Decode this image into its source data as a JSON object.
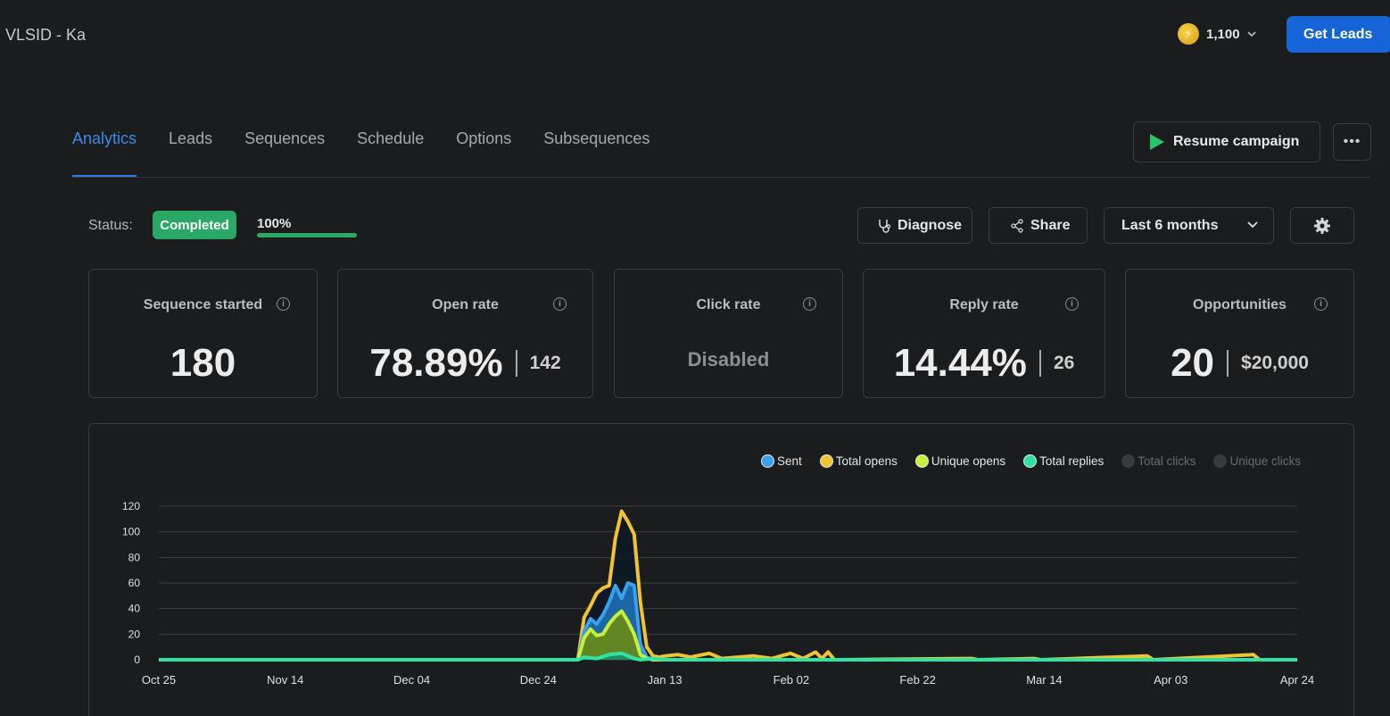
{
  "header": {
    "title": "VLSID - Ka",
    "credits": "1,100",
    "get_leads_label": "Get Leads"
  },
  "tabs": [
    {
      "label": "Analytics",
      "active": true
    },
    {
      "label": "Leads"
    },
    {
      "label": "Sequences"
    },
    {
      "label": "Schedule"
    },
    {
      "label": "Options"
    },
    {
      "label": "Subsequences"
    }
  ],
  "actions": {
    "resume_label": "Resume campaign",
    "more_label": "•••"
  },
  "status": {
    "label": "Status:",
    "value": "Completed",
    "progress_text": "100%",
    "progress": 1.0,
    "color": "#2aa866"
  },
  "controls": {
    "diagnose_label": "Diagnose",
    "share_label": "Share",
    "range_label": "Last 6 months"
  },
  "cards": {
    "sequence_started": {
      "title": "Sequence started",
      "value": "180"
    },
    "open_rate": {
      "title": "Open rate",
      "value": "78.89%",
      "count": "142"
    },
    "click_rate": {
      "title": "Click rate",
      "value": "Disabled"
    },
    "reply_rate": {
      "title": "Reply rate",
      "value": "14.44%",
      "count": "26"
    },
    "opportunities": {
      "title": "Opportunities",
      "value": "20",
      "amount": "$20,000"
    }
  },
  "chart_data": {
    "type": "area",
    "title": "",
    "xlabel": "",
    "ylabel": "",
    "x_ticks": [
      "Oct 25",
      "Nov 14",
      "Dec 04",
      "Dec 24",
      "Jan 13",
      "Feb 02",
      "Feb 22",
      "Mar 14",
      "Apr 03",
      "Apr 24"
    ],
    "y_ticks": [
      0,
      20,
      40,
      60,
      80,
      100,
      120
    ],
    "ylim": [
      0,
      120
    ],
    "x_range": [
      "2023-10-25",
      "2024-04-24"
    ],
    "grid": true,
    "legend_position": "top-right",
    "series": [
      {
        "name": "Sent",
        "color": "#3aa0ee",
        "visible": true,
        "points": [
          [
            "2023-10-25",
            0
          ],
          [
            "2023-12-31",
            0
          ],
          [
            "2024-01-01",
            22
          ],
          [
            "2024-01-02",
            32
          ],
          [
            "2024-01-03",
            28
          ],
          [
            "2024-01-04",
            35
          ],
          [
            "2024-01-05",
            45
          ],
          [
            "2024-01-06",
            58
          ],
          [
            "2024-01-07",
            48
          ],
          [
            "2024-01-08",
            60
          ],
          [
            "2024-01-09",
            58
          ],
          [
            "2024-01-10",
            12
          ],
          [
            "2024-01-11",
            2
          ],
          [
            "2024-01-12",
            0
          ],
          [
            "2024-04-24",
            0
          ]
        ]
      },
      {
        "name": "Total opens",
        "color": "#f1c232",
        "visible": true,
        "points": [
          [
            "2023-10-25",
            0
          ],
          [
            "2023-12-31",
            0
          ],
          [
            "2024-01-01",
            33
          ],
          [
            "2024-01-02",
            42
          ],
          [
            "2024-01-03",
            52
          ],
          [
            "2024-01-04",
            56
          ],
          [
            "2024-01-05",
            58
          ],
          [
            "2024-01-06",
            95
          ],
          [
            "2024-01-07",
            116
          ],
          [
            "2024-01-08",
            108
          ],
          [
            "2024-01-09",
            98
          ],
          [
            "2024-01-10",
            45
          ],
          [
            "2024-01-11",
            10
          ],
          [
            "2024-01-12",
            3
          ],
          [
            "2024-01-13",
            2
          ],
          [
            "2024-01-14",
            3
          ],
          [
            "2024-01-16",
            4
          ],
          [
            "2024-01-18",
            2
          ],
          [
            "2024-01-21",
            5
          ],
          [
            "2024-01-23",
            1
          ],
          [
            "2024-01-28",
            3
          ],
          [
            "2024-01-31",
            1
          ],
          [
            "2024-02-03",
            5
          ],
          [
            "2024-02-05",
            1
          ],
          [
            "2024-02-07",
            6
          ],
          [
            "2024-02-08",
            1
          ],
          [
            "2024-02-09",
            6
          ],
          [
            "2024-02-10",
            0
          ],
          [
            "2024-03-03",
            1
          ],
          [
            "2024-03-04",
            0
          ],
          [
            "2024-03-13",
            1
          ],
          [
            "2024-03-14",
            0
          ],
          [
            "2024-03-31",
            3
          ],
          [
            "2024-04-01",
            0
          ],
          [
            "2024-04-17",
            4
          ],
          [
            "2024-04-18",
            0
          ],
          [
            "2024-04-24",
            0
          ]
        ]
      },
      {
        "name": "Unique opens",
        "color": "#c6f03a",
        "visible": true,
        "points": [
          [
            "2023-10-25",
            0
          ],
          [
            "2023-12-31",
            0
          ],
          [
            "2024-01-01",
            17
          ],
          [
            "2024-01-02",
            24
          ],
          [
            "2024-01-03",
            19
          ],
          [
            "2024-01-04",
            20
          ],
          [
            "2024-01-05",
            28
          ],
          [
            "2024-01-06",
            34
          ],
          [
            "2024-01-07",
            38
          ],
          [
            "2024-01-08",
            30
          ],
          [
            "2024-01-09",
            20
          ],
          [
            "2024-01-10",
            4
          ],
          [
            "2024-01-11",
            1
          ],
          [
            "2024-01-12",
            0
          ],
          [
            "2024-04-24",
            0
          ]
        ]
      },
      {
        "name": "Total replies",
        "color": "#2fe3a4",
        "visible": true,
        "points": [
          [
            "2023-10-25",
            0
          ],
          [
            "2023-12-31",
            0
          ],
          [
            "2024-01-01",
            2
          ],
          [
            "2024-01-03",
            1
          ],
          [
            "2024-01-05",
            4
          ],
          [
            "2024-01-07",
            5
          ],
          [
            "2024-01-08",
            3
          ],
          [
            "2024-01-09",
            1
          ],
          [
            "2024-01-10",
            0
          ],
          [
            "2024-01-12",
            1
          ],
          [
            "2024-01-14",
            0
          ],
          [
            "2024-04-24",
            0
          ]
        ]
      },
      {
        "name": "Total clicks",
        "color": "#3a3b3e",
        "visible": false,
        "points": []
      },
      {
        "name": "Unique clicks",
        "color": "#3a3b3e",
        "visible": false,
        "points": []
      }
    ]
  },
  "icons": {
    "coin": "lightning-coin-icon",
    "diagnose": "stethoscope-icon",
    "share": "share-icon",
    "settings": "gear-icon",
    "info": "info-icon"
  }
}
